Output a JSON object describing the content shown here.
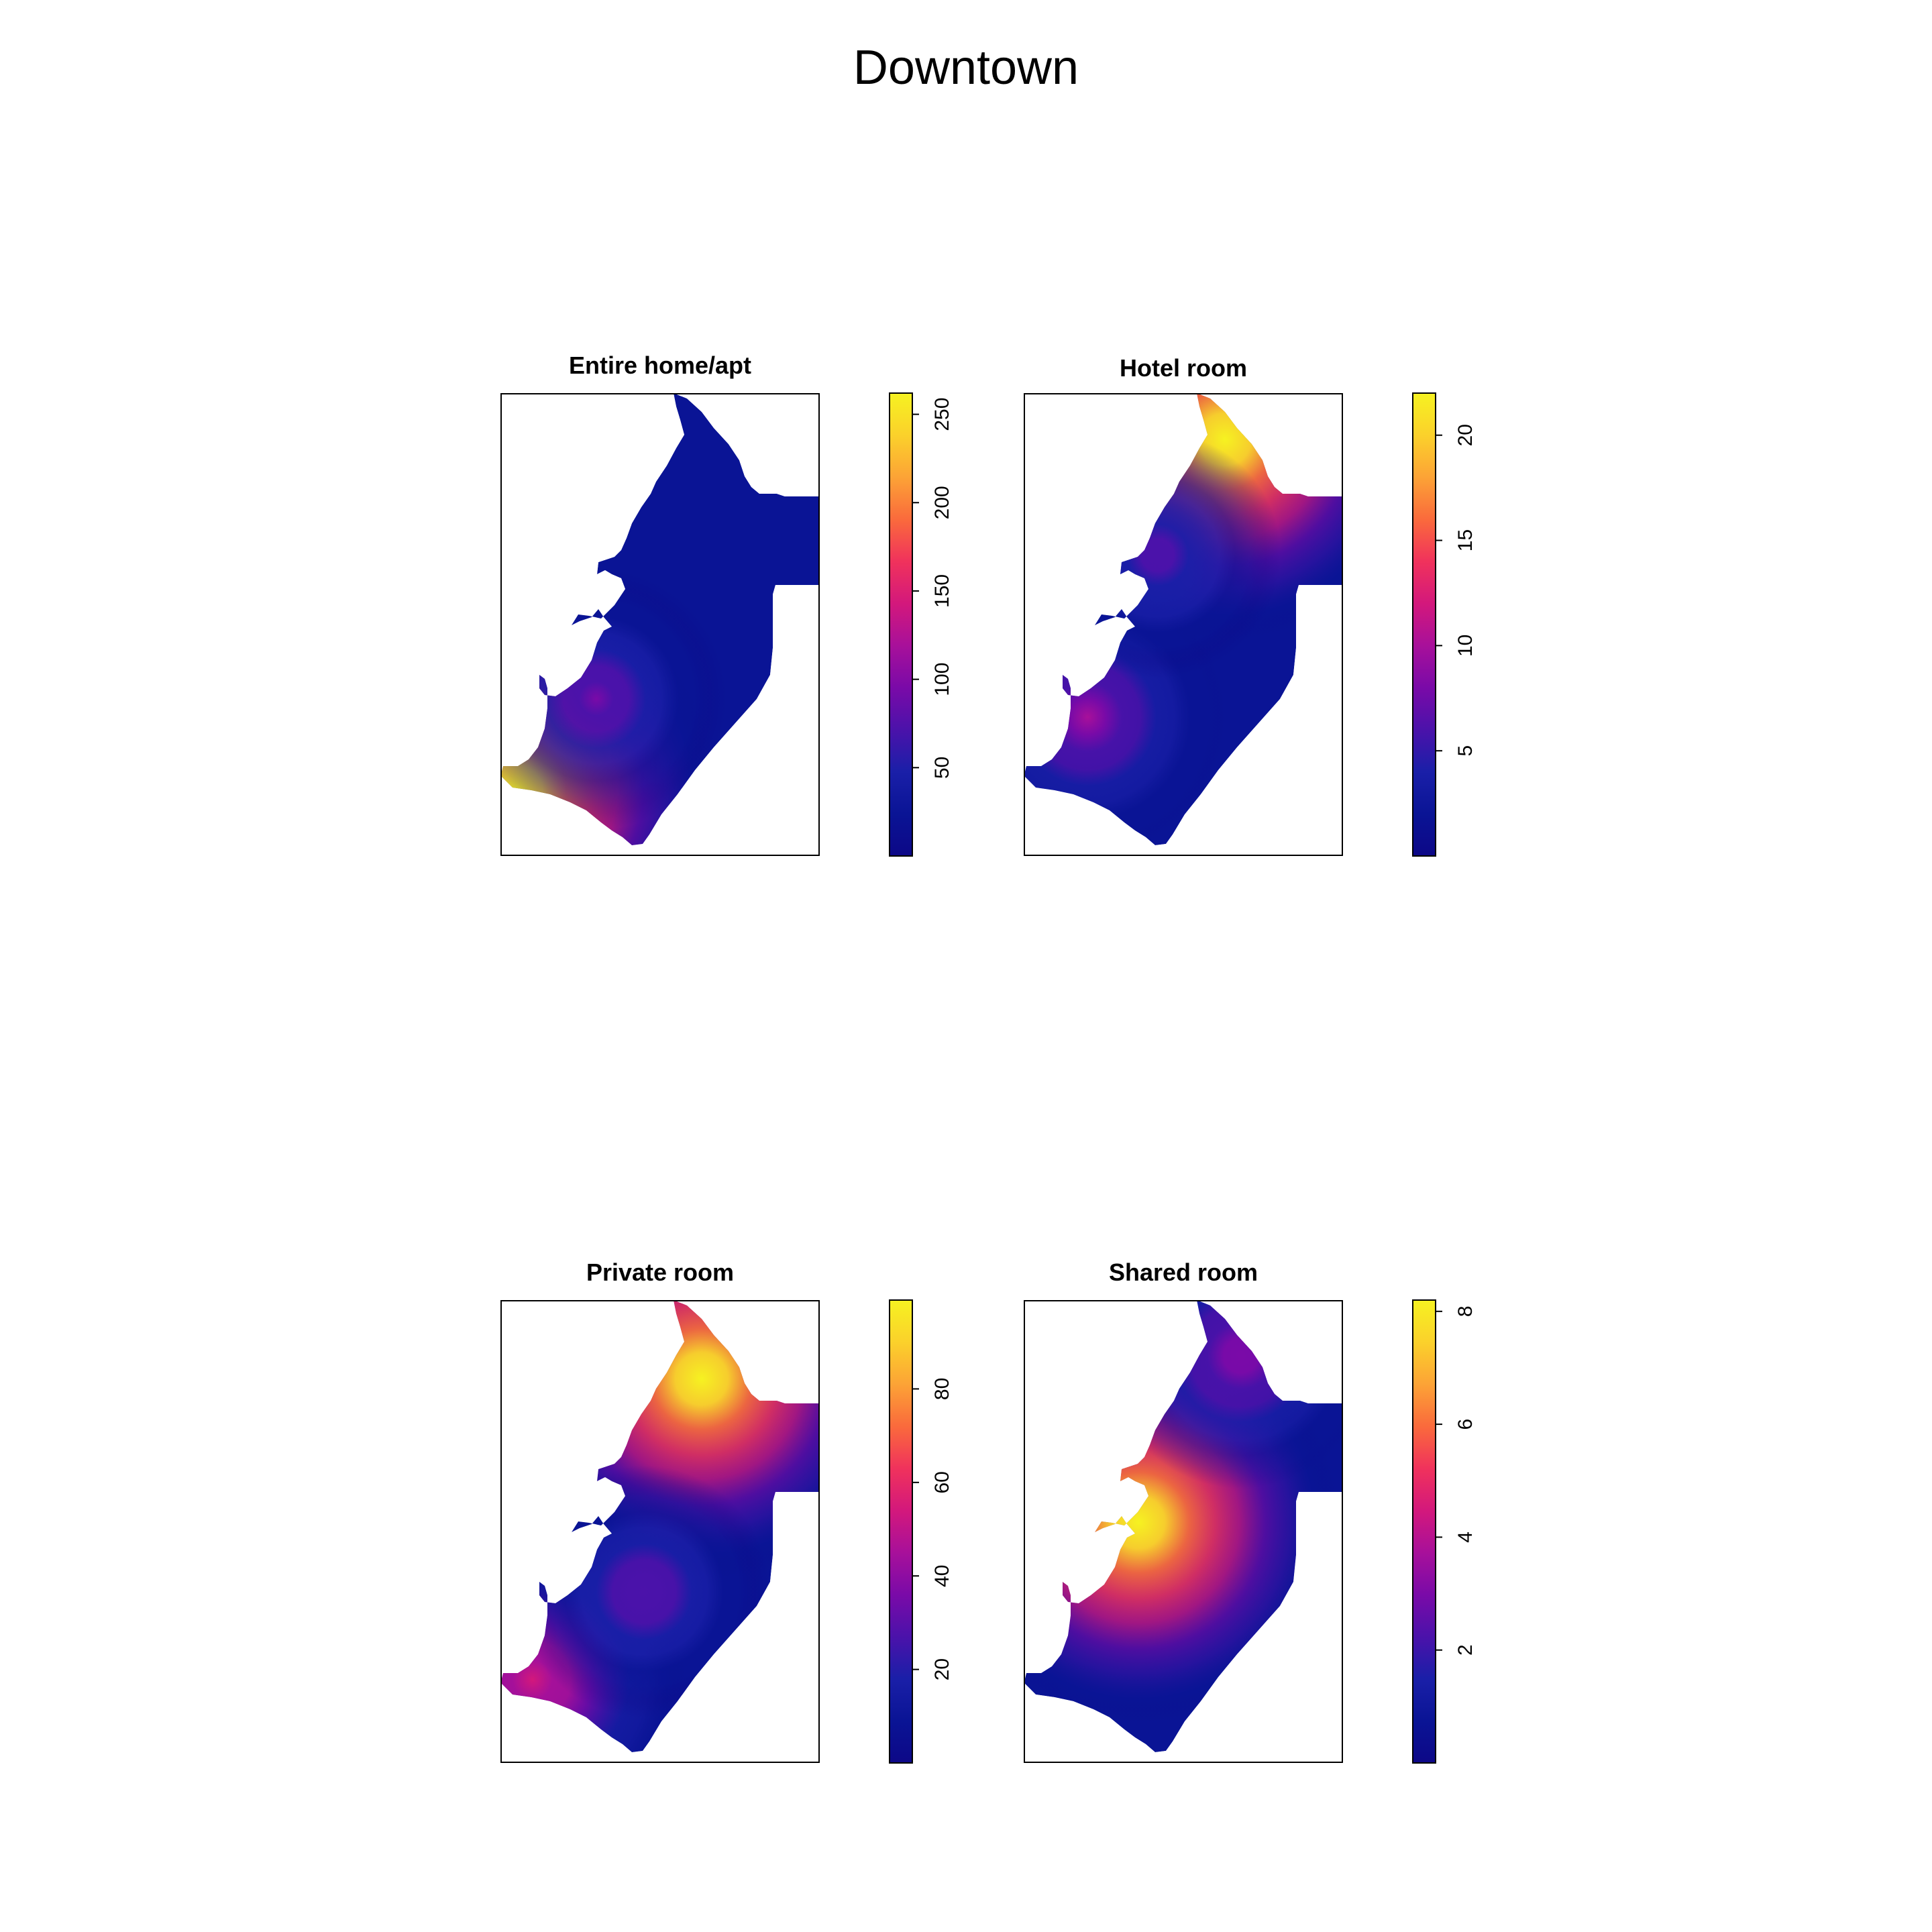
{
  "title": "Downtown",
  "colors": {
    "palette": [
      "#0d0887",
      "#0a1495",
      "#1a1fa8",
      "#4b12aa",
      "#7a0aa8",
      "#a8109a",
      "#d3187c",
      "#f0325c",
      "#fa6a3c",
      "#fca336",
      "#fbd12b",
      "#f6f221"
    ],
    "background": "#ffffff"
  },
  "chart_data": [
    {
      "type": "heatmap",
      "title": "Entire home/apt",
      "legend_ticks": [
        50,
        100,
        150,
        200,
        250
      ],
      "value_range": [
        0,
        262
      ],
      "hotspots": [
        {
          "x": 0.05,
          "y": 0.86,
          "value": 262
        },
        {
          "x": 0.3,
          "y": 0.66,
          "value": 90
        }
      ]
    },
    {
      "type": "heatmap",
      "title": "Hotel room",
      "legend_ticks": [
        5,
        10,
        15,
        20
      ],
      "value_range": [
        0,
        22
      ],
      "hotspots": [
        {
          "x": 0.63,
          "y": 0.1,
          "value": 22
        },
        {
          "x": 0.2,
          "y": 0.7,
          "value": 9
        },
        {
          "x": 0.42,
          "y": 0.35,
          "value": 6
        }
      ]
    },
    {
      "type": "heatmap",
      "title": "Private room",
      "legend_ticks": [
        20,
        40,
        60,
        80
      ],
      "value_range": [
        0,
        99
      ],
      "hotspots": [
        {
          "x": 0.63,
          "y": 0.17,
          "value": 99
        },
        {
          "x": 0.1,
          "y": 0.82,
          "value": 55
        },
        {
          "x": 0.45,
          "y": 0.63,
          "value": 30
        }
      ]
    },
    {
      "type": "heatmap",
      "title": "Shared room",
      "legend_ticks": [
        2,
        4,
        6,
        8
      ],
      "value_range": [
        0,
        8.2
      ],
      "hotspots": [
        {
          "x": 0.36,
          "y": 0.48,
          "value": 8.2
        },
        {
          "x": 0.68,
          "y": 0.12,
          "value": 3
        }
      ]
    }
  ]
}
